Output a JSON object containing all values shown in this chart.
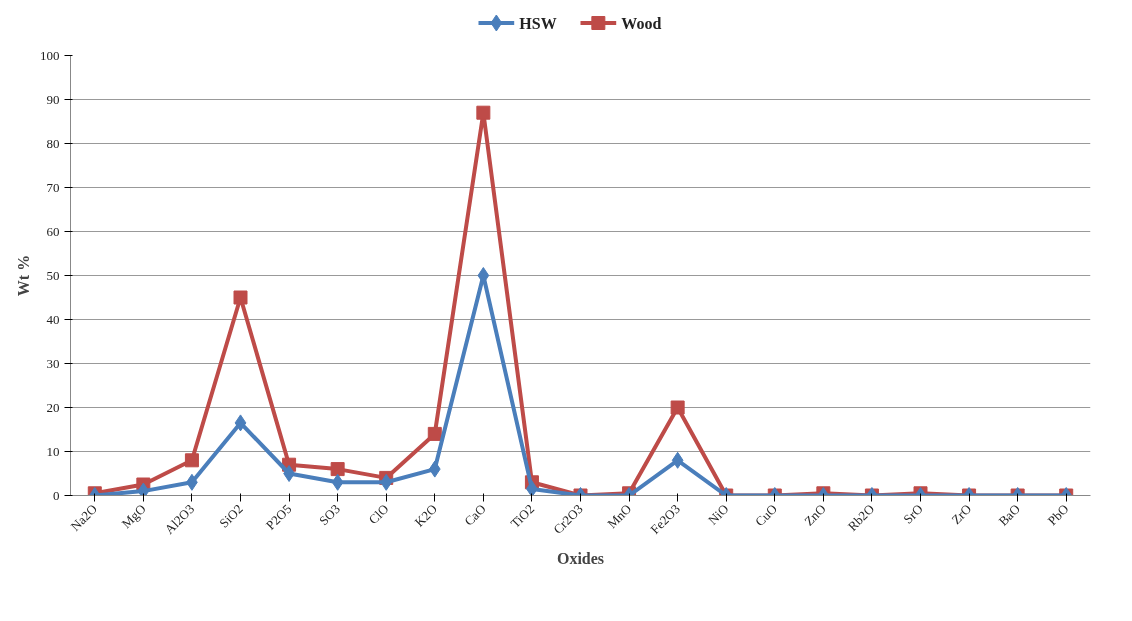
{
  "chart_data": {
    "type": "line",
    "xlabel": "Oxides",
    "ylabel": "Wt %",
    "categories": [
      "Na2O",
      "MgO",
      "Al2O3",
      "SiO2",
      "P2O5",
      "SO3",
      "ClO",
      "K2O",
      "CaO",
      "TiO2",
      "Cr2O3",
      "MnO",
      "Fe2O3",
      "NiO",
      "CuO",
      "ZnO",
      "Rb2O",
      "SrO",
      "ZrO",
      "BaO",
      "PbO"
    ],
    "series": [
      {
        "name": "HSW",
        "color": "#4a7ebb",
        "marker": "diamond",
        "values": [
          0,
          1,
          3,
          16.5,
          5,
          3,
          3,
          6,
          50,
          1.5,
          0,
          0,
          8,
          0,
          0,
          0,
          0,
          0,
          0,
          0,
          0
        ]
      },
      {
        "name": "Wood",
        "color": "#be4b48",
        "marker": "square",
        "values": [
          0.5,
          2.5,
          8,
          45,
          7,
          6,
          4,
          14,
          87,
          3,
          0,
          0.5,
          20,
          0,
          0,
          0.5,
          0,
          0.5,
          0,
          0,
          0
        ]
      }
    ],
    "ylim": [
      0,
      100
    ],
    "yticks": [
      0,
      10,
      20,
      30,
      40,
      50,
      60,
      70,
      80,
      90,
      100
    ],
    "grid": "y",
    "legend": "top",
    "line_style": "solid"
  }
}
